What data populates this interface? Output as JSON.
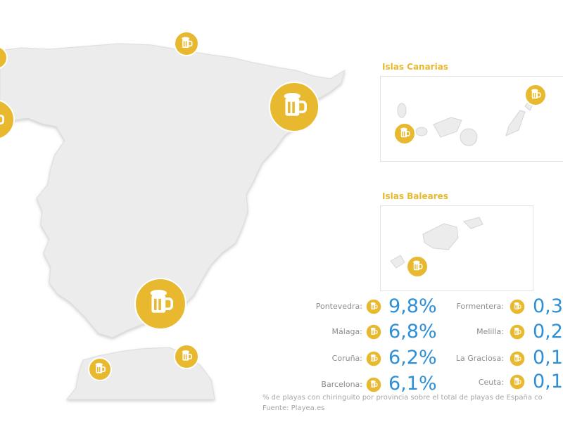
{
  "colors": {
    "land": "#ececec",
    "land_shadow": "#d7d7d7",
    "marker_fill": "#e8b92f",
    "marker_ring": "#ffffff",
    "percent_text": "#2d8fd6",
    "label_text": "#8c8c8c",
    "inset_title": "#e8b92f"
  },
  "marker_icon": "beer-mug-icon",
  "insets": {
    "canarias_title": "Islas Canarias",
    "baleares_title": "Islas Baleares"
  },
  "legend": {
    "left": [
      {
        "label": "Pontevedra:",
        "value": "9,8%"
      },
      {
        "label": "Málaga:",
        "value": "6,8%"
      },
      {
        "label": "Coruña:",
        "value": "6,2%"
      },
      {
        "label": "Barcelona:",
        "value": "6,1%"
      }
    ],
    "right": [
      {
        "label": "Formentera:",
        "value": "0,3"
      },
      {
        "label": "Melilla:",
        "value": "0,2"
      },
      {
        "label": "La Graciosa:",
        "value": "0,1"
      },
      {
        "label": "Ceuta:",
        "value": "0,1"
      }
    ]
  },
  "footer": {
    "caption": "% de playas con chiringuito por provincia sobre el total de playas de España co",
    "source": "Fuente: Playea.es"
  }
}
